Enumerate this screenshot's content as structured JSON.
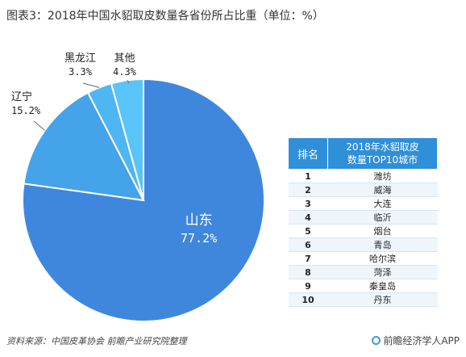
{
  "title": "图表3：2018年中国水貂取皮数量各省份所占比重（单位：%）",
  "chart_data": {
    "type": "pie",
    "slices": [
      {
        "name": "山东",
        "value": 77.2,
        "label": "77.2%",
        "color": "#3f87dc"
      },
      {
        "name": "辽宁",
        "value": 15.2,
        "label": "15.2%",
        "color": "#45a3ea"
      },
      {
        "name": "黑龙江",
        "value": 3.3,
        "label": "3.3%",
        "color": "#4eb6f2"
      },
      {
        "name": "其他",
        "value": 4.3,
        "label": "4.3%",
        "color": "#59c4f8"
      }
    ]
  },
  "table": {
    "headers": [
      "排名",
      "2018年水貂取皮数量TOP10城市"
    ],
    "rows": [
      {
        "rank": "1",
        "city": "潍坊"
      },
      {
        "rank": "2",
        "city": "威海"
      },
      {
        "rank": "3",
        "city": "大连"
      },
      {
        "rank": "4",
        "city": "临沂"
      },
      {
        "rank": "5",
        "city": "烟台"
      },
      {
        "rank": "6",
        "city": "青岛"
      },
      {
        "rank": "7",
        "city": "哈尔滨"
      },
      {
        "rank": "8",
        "city": "菏泽"
      },
      {
        "rank": "9",
        "city": "秦皇岛"
      },
      {
        "rank": "10",
        "city": "丹东"
      }
    ]
  },
  "source": "资料来源：中国皮革协会 前瞻产业研究院整理",
  "brand": "前瞻经济学人APP"
}
